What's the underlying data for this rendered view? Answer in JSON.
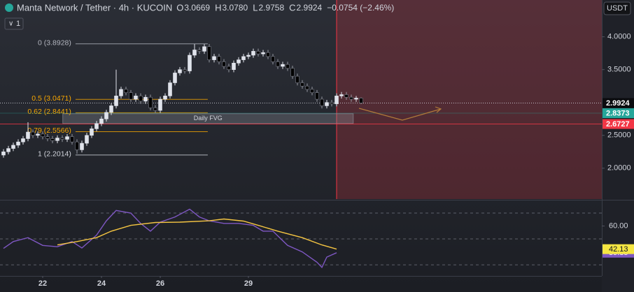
{
  "header": {
    "symbol": "Manta Network / Tether · 4h · KUCOIN",
    "ohlc": [
      {
        "key": "O",
        "value": "3.0669"
      },
      {
        "key": "H",
        "value": "3.0780"
      },
      {
        "key": "L",
        "value": "2.9758"
      },
      {
        "key": "C",
        "value": "2.9924"
      }
    ],
    "change": "−0.0754 (−2.46%)",
    "indicator_count": "1",
    "currency": "USDT"
  },
  "chart_data": [
    {
      "type": "candlestick",
      "up_color": "#e0e3eb",
      "down_color": "#000000",
      "x": [
        0,
        1,
        2,
        3,
        4,
        5,
        6,
        7,
        8,
        9,
        10,
        11,
        12,
        13,
        14,
        15,
        16,
        17,
        18,
        19,
        20,
        21,
        22,
        23,
        24,
        25,
        26,
        27,
        28,
        29,
        30,
        31,
        32,
        33,
        34,
        35,
        36,
        37,
        38,
        39,
        40,
        41,
        42,
        43,
        44,
        45,
        46,
        47,
        48,
        49,
        50,
        51,
        52,
        53,
        54,
        55,
        56,
        57,
        58,
        59,
        60,
        61,
        62,
        63,
        64,
        65,
        66,
        67,
        68,
        69,
        70,
        71,
        72,
        73
      ],
      "open": [
        2.2,
        2.25,
        2.3,
        2.35,
        2.4,
        2.45,
        2.55,
        2.5,
        2.52,
        2.48,
        2.45,
        2.42,
        2.46,
        2.44,
        2.48,
        2.4,
        2.28,
        2.38,
        2.5,
        2.6,
        2.68,
        2.75,
        2.85,
        2.95,
        3.1,
        3.2,
        3.15,
        3.05,
        3.1,
        3.02,
        3.08,
        2.92,
        2.88,
        3.05,
        3.1,
        3.3,
        3.45,
        3.5,
        3.48,
        3.72,
        3.8,
        3.78,
        3.85,
        3.65,
        3.7,
        3.62,
        3.55,
        3.5,
        3.6,
        3.65,
        3.7,
        3.72,
        3.78,
        3.74,
        3.76,
        3.7,
        3.62,
        3.55,
        3.58,
        3.52,
        3.4,
        3.3,
        3.25,
        3.2,
        3.15,
        3.05,
        2.95,
        3.0,
        2.98,
        3.1,
        3.12,
        3.08,
        3.05,
        3.0669
      ],
      "high": [
        2.29,
        2.34,
        2.39,
        2.44,
        2.49,
        2.7,
        2.59,
        2.56,
        2.56,
        2.52,
        2.49,
        2.5,
        2.5,
        2.52,
        2.52,
        2.44,
        2.42,
        2.54,
        2.64,
        2.72,
        2.79,
        2.89,
        2.99,
        3.5,
        3.24,
        3.24,
        3.19,
        3.14,
        3.14,
        3.12,
        3.12,
        2.96,
        3.09,
        3.14,
        3.34,
        3.49,
        3.54,
        3.54,
        3.76,
        3.89,
        3.84,
        3.89,
        3.89,
        3.74,
        3.74,
        3.66,
        3.59,
        3.64,
        3.69,
        3.74,
        3.76,
        3.82,
        3.82,
        3.8,
        3.8,
        3.74,
        3.66,
        3.62,
        3.62,
        3.56,
        3.44,
        3.34,
        3.29,
        3.24,
        3.19,
        3.09,
        3.04,
        3.04,
        3.14,
        3.16,
        3.16,
        3.12,
        3.1,
        3.078
      ],
      "low": [
        2.16,
        2.21,
        2.26,
        2.31,
        2.36,
        2.41,
        2.46,
        2.46,
        2.44,
        2.41,
        2.38,
        2.38,
        2.4,
        2.4,
        2.36,
        2.22,
        2.24,
        2.34,
        2.46,
        2.56,
        2.64,
        2.71,
        2.81,
        2.91,
        3.06,
        3.11,
        3.01,
        3.01,
        2.98,
        2.98,
        2.88,
        2.84,
        2.84,
        3.01,
        3.06,
        3.26,
        3.41,
        3.44,
        3.44,
        3.68,
        3.74,
        3.74,
        3.61,
        3.61,
        3.58,
        3.51,
        3.46,
        3.46,
        3.56,
        3.61,
        3.66,
        3.68,
        3.7,
        3.7,
        3.66,
        3.58,
        3.51,
        3.51,
        3.48,
        3.36,
        3.26,
        3.21,
        3.16,
        3.11,
        3.01,
        2.91,
        2.91,
        2.94,
        2.94,
        3.06,
        3.04,
        3.01,
        3.01,
        2.9758
      ],
      "close": [
        2.25,
        2.3,
        2.35,
        2.4,
        2.45,
        2.55,
        2.5,
        2.52,
        2.48,
        2.45,
        2.42,
        2.46,
        2.44,
        2.48,
        2.4,
        2.28,
        2.38,
        2.5,
        2.6,
        2.68,
        2.75,
        2.85,
        2.95,
        3.1,
        3.2,
        3.15,
        3.05,
        3.1,
        3.02,
        3.08,
        2.92,
        2.88,
        3.05,
        3.1,
        3.3,
        3.45,
        3.5,
        3.48,
        3.72,
        3.8,
        3.78,
        3.85,
        3.65,
        3.7,
        3.62,
        3.55,
        3.5,
        3.6,
        3.65,
        3.7,
        3.72,
        3.78,
        3.74,
        3.76,
        3.7,
        3.62,
        3.55,
        3.58,
        3.52,
        3.4,
        3.3,
        3.25,
        3.2,
        3.15,
        3.05,
        2.95,
        3.0,
        2.98,
        3.1,
        3.12,
        3.08,
        3.05,
        3.0669,
        2.9924
      ],
      "xlim": [
        -0.714,
        122.14
      ],
      "ylim": [
        1.53,
        4.56
      ],
      "yticks": [
        {
          "value": 4,
          "label": "4.0000"
        },
        {
          "value": 3.5,
          "label": "3.5000"
        },
        {
          "value": 2.5,
          "label": "2.5000"
        },
        {
          "value": 2,
          "label": "2.0000"
        }
      ],
      "fib_x": [
        14.7,
        41.7
      ],
      "fib_levels": [
        {
          "value": 3.8928,
          "label": "0 (3.8928)",
          "color": "#b2b5be"
        },
        {
          "value": 3.0471,
          "label": "0.5 (3.0471)",
          "color": "#f7a600"
        },
        {
          "value": 2.8441,
          "label": "0.62 (2.8441)",
          "color": "#f7a600"
        },
        {
          "value": 2.5566,
          "label": "0.79 (2.5566)",
          "color": "#f7a600"
        },
        {
          "value": 2.2014,
          "label": "1 (2.2014)",
          "color": "#d1d4dc"
        }
      ],
      "box": {
        "x": [
          12.1,
          71.4
        ],
        "y": [
          2.68,
          2.83
        ],
        "label": "Daily FVG",
        "color": "#9598a1"
      },
      "vline": {
        "x": 68,
        "color": "#f23645"
      },
      "hlines": [
        {
          "value": 2.9924,
          "color": "#e0e3eb",
          "badge": "#0b0c0f"
        },
        {
          "value": 2.8373,
          "color": "#26a69a",
          "badge": "#26a69a"
        },
        {
          "value": 2.6727,
          "color": "#f23645",
          "badge": "#f23645"
        }
      ]
    },
    {
      "type": "line",
      "xlim": [
        -0.714,
        122.14
      ],
      "ylim": [
        21.4,
        79.2
      ],
      "yticks": [
        {
          "value": 60,
          "label": "60.00"
        }
      ],
      "bands": [
        70,
        50,
        30
      ],
      "xticks": [
        {
          "value": 8,
          "label": "22"
        },
        {
          "value": 20,
          "label": "24"
        },
        {
          "value": 32,
          "label": "26"
        },
        {
          "value": 50,
          "label": "29"
        }
      ],
      "series": [
        {
          "color": "#7e57c2",
          "badge": "#7e57c2",
          "x": [
            0,
            2,
            5,
            8,
            11,
            14,
            16,
            19,
            21,
            23,
            26,
            28,
            30,
            32,
            35,
            38,
            40,
            42,
            45,
            48,
            51,
            53,
            55,
            58,
            61,
            64,
            65,
            66,
            68
          ],
          "values": [
            42.7,
            48,
            51,
            45,
            44,
            48,
            43,
            53,
            64,
            72,
            70,
            62,
            56,
            63,
            67,
            73,
            67,
            64,
            62,
            62,
            60.5,
            56,
            56,
            45,
            40,
            32,
            28,
            36,
            39.35
          ]
        },
        {
          "color": "#f5c542",
          "badge": "#f5e642",
          "x": [
            11,
            15,
            19,
            22,
            26,
            31,
            36,
            42,
            45,
            49,
            52,
            56,
            61,
            65,
            68
          ],
          "values": [
            45.4,
            48,
            51,
            56,
            60.5,
            62.7,
            63,
            64,
            65.4,
            63.8,
            60.5,
            56,
            51,
            45.4,
            42.13
          ]
        }
      ]
    }
  ]
}
